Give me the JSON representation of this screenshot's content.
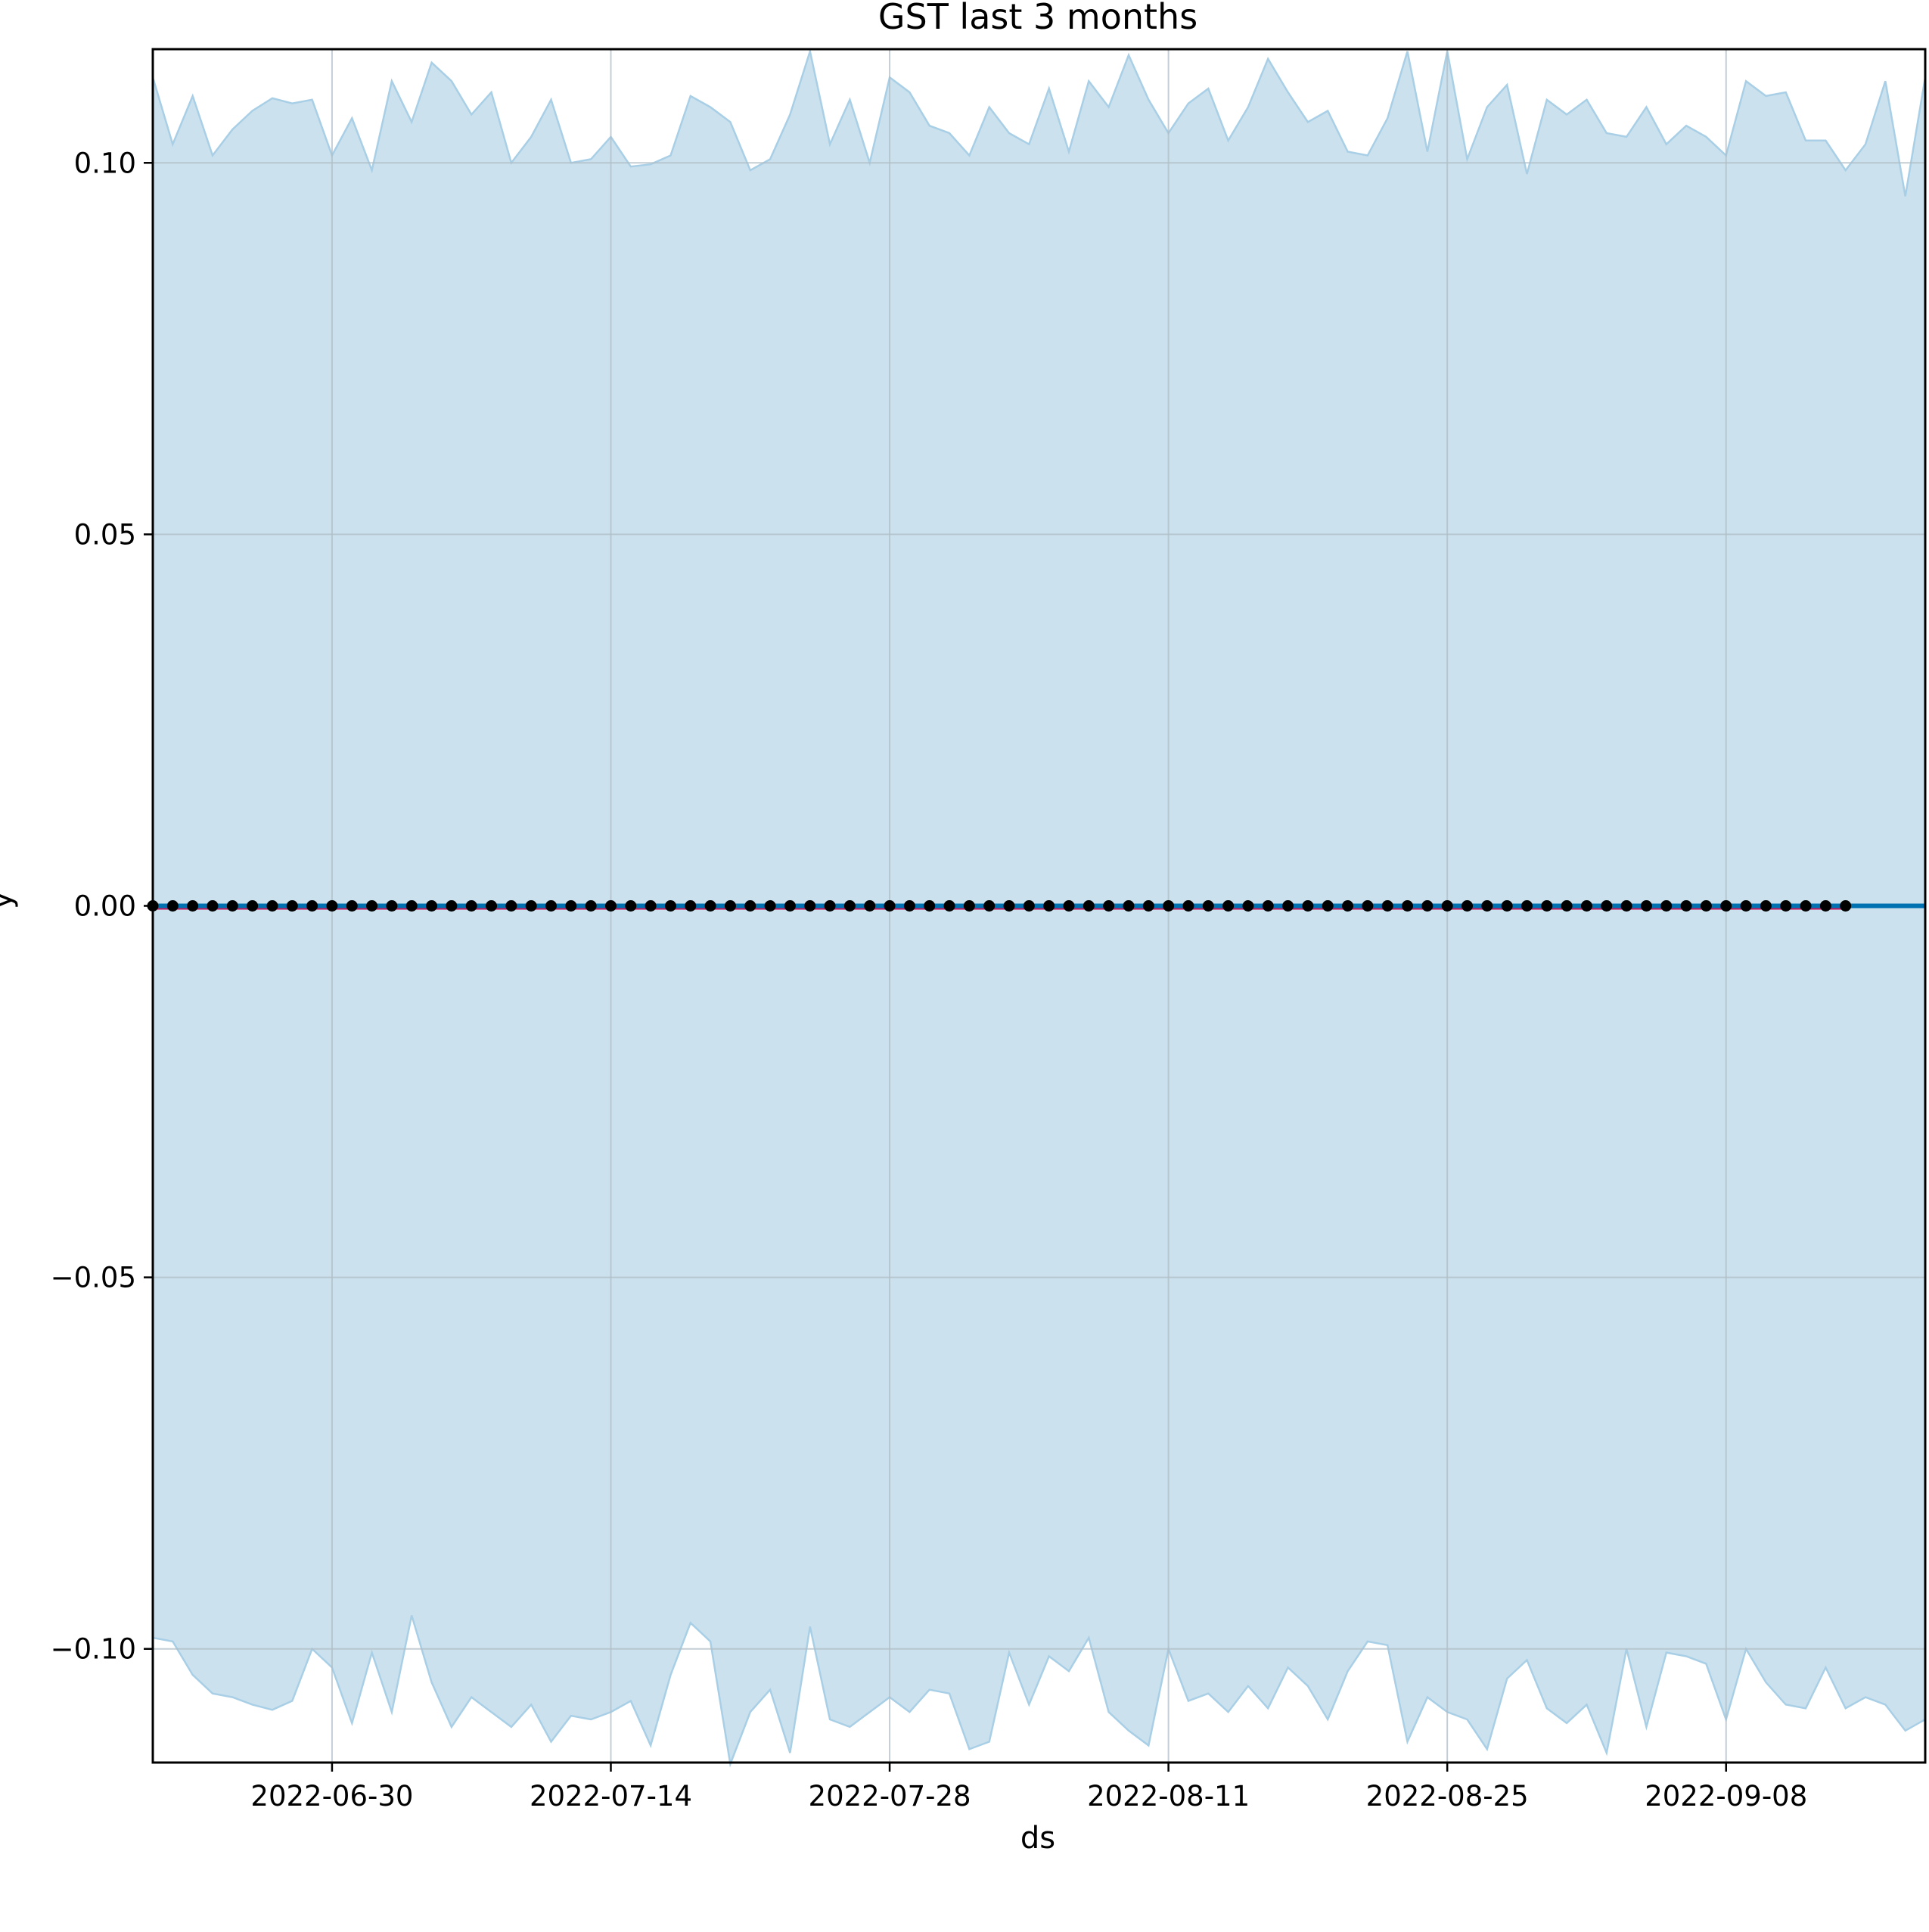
{
  "chart_data": {
    "type": "line",
    "title": "GST last 3 months",
    "xlabel": "ds",
    "ylabel": "y",
    "x_range": [
      "2022-06-21",
      "2022-09-18"
    ],
    "ylim": [
      -0.1153,
      0.1153
    ],
    "grid": true,
    "x_ticks": [
      "2022-06-30",
      "2022-07-14",
      "2022-07-28",
      "2022-08-11",
      "2022-08-25",
      "2022-09-08"
    ],
    "y_ticks": [
      {
        "value": 0.1,
        "label": "0.10"
      },
      {
        "value": 0.05,
        "label": "0.05"
      },
      {
        "value": 0.0,
        "label": "0.00"
      },
      {
        "value": -0.05,
        "label": "−0.05"
      },
      {
        "value": -0.1,
        "label": "−0.10"
      }
    ],
    "colors": {
      "band_fill": "#cce1ee",
      "band_edge": "#a8cfe6",
      "forecast_line": "#0072b2",
      "observed_points": "#000000",
      "trend_line": "#c2185b",
      "grid": "#b0bec5"
    },
    "observed": {
      "x_start": "2022-06-21",
      "x_end": "2022-09-14",
      "y": 0.0
    },
    "forecast": {
      "x_start": "2022-06-21",
      "x_end": "2022-09-18",
      "y": 0.0
    },
    "upper_bound": [
      0.1115,
      0.1025,
      0.109,
      0.101,
      0.1045,
      0.107,
      0.1087,
      0.108,
      0.1085,
      0.101,
      0.106,
      0.099,
      0.111,
      0.1055,
      0.1135,
      0.111,
      0.1065,
      0.1095,
      0.1,
      0.1035,
      0.1085,
      0.1,
      0.1005,
      0.1035,
      0.0995,
      0.0998,
      0.101,
      0.109,
      0.1075,
      0.1055,
      0.099,
      0.1005,
      0.1065,
      0.115,
      0.1025,
      0.1085,
      0.1,
      0.1115,
      0.1095,
      0.105,
      0.104,
      0.101,
      0.1075,
      0.104,
      0.1025,
      0.11,
      0.1015,
      0.111,
      0.1075,
      0.1145,
      0.1085,
      0.104,
      0.108,
      0.11,
      0.103,
      0.1075,
      0.114,
      0.1095,
      0.1055,
      0.107,
      0.1015,
      0.101,
      0.106,
      0.115,
      0.1015,
      0.115,
      0.1005,
      0.1075,
      0.1105,
      0.0985,
      0.1085,
      0.1065,
      0.1085,
      0.104,
      0.1035,
      0.1075,
      0.1025,
      0.105,
      0.1035,
      0.101,
      0.111,
      0.109,
      0.1095,
      0.103,
      0.103,
      0.099,
      0.1025,
      0.111,
      0.0955,
      0.1115
    ],
    "lower_bound": [
      -0.0985,
      -0.099,
      -0.1035,
      -0.106,
      -0.1065,
      -0.1075,
      -0.1082,
      -0.107,
      -0.1,
      -0.1025,
      -0.11,
      -0.1005,
      -0.1085,
      -0.0955,
      -0.1045,
      -0.1105,
      -0.1065,
      -0.1085,
      -0.1105,
      -0.1075,
      -0.1125,
      -0.109,
      -0.1095,
      -0.1085,
      -0.107,
      -0.113,
      -0.1035,
      -0.0965,
      -0.099,
      -0.1155,
      -0.1085,
      -0.1055,
      -0.114,
      -0.097,
      -0.1095,
      -0.1105,
      -0.1085,
      -0.1065,
      -0.1085,
      -0.1055,
      -0.106,
      -0.1135,
      -0.1125,
      -0.1005,
      -0.1075,
      -0.101,
      -0.103,
      -0.0985,
      -0.1085,
      -0.111,
      -0.113,
      -0.1,
      -0.107,
      -0.106,
      -0.1085,
      -0.105,
      -0.108,
      -0.1025,
      -0.105,
      -0.1095,
      -0.103,
      -0.099,
      -0.0995,
      -0.1125,
      -0.1065,
      -0.1085,
      -0.1095,
      -0.1135,
      -0.104,
      -0.1015,
      -0.108,
      -0.11,
      -0.1075,
      -0.114,
      -0.1,
      -0.1105,
      -0.1005,
      -0.101,
      -0.102,
      -0.1095,
      -0.1,
      -0.1045,
      -0.1075,
      -0.108,
      -0.1025,
      -0.108,
      -0.1065,
      -0.1075,
      -0.111,
      -0.1095
    ]
  }
}
